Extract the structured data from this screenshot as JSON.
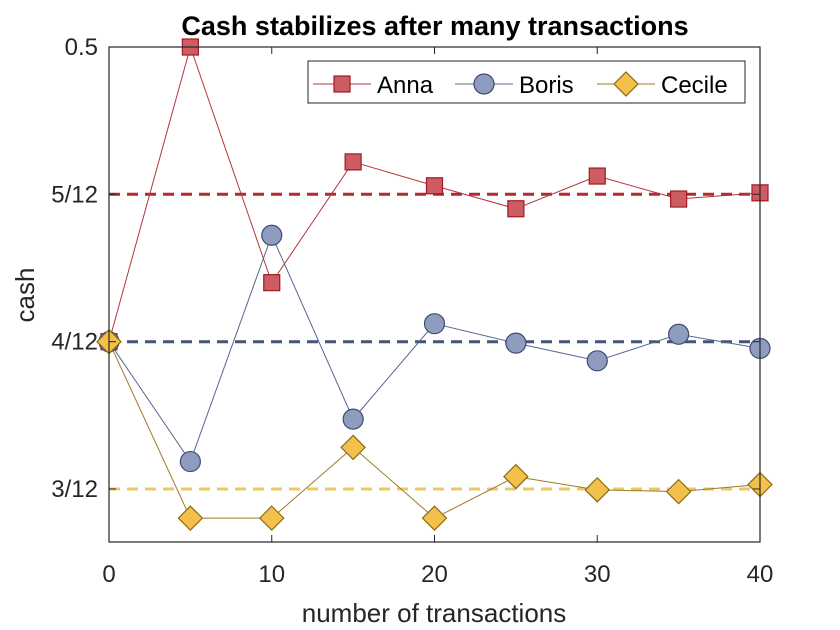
{
  "chart_data": {
    "type": "line",
    "title": "Cash stabilizes after many transactions",
    "xlabel": "number of transactions",
    "ylabel": "cash",
    "xlim": [
      0,
      40
    ],
    "ylim": [
      0.22,
      0.5
    ],
    "x_ticks": [
      0,
      10,
      20,
      30,
      40
    ],
    "y_ticks": [
      {
        "value": 0.25,
        "label": "3/12"
      },
      {
        "value": 0.3333,
        "label": "4/12"
      },
      {
        "value": 0.4167,
        "label": "5/12"
      },
      {
        "value": 0.5,
        "label": "0.5"
      }
    ],
    "grid": false,
    "legend_position": "top-right",
    "x": [
      0,
      5,
      10,
      15,
      20,
      25,
      30,
      35,
      40
    ],
    "series": [
      {
        "name": "Anna",
        "marker": "square",
        "color": "#cd5c63",
        "edge": "#a01a22",
        "line": "#b2363d",
        "values": [
          0.3333,
          0.5,
          0.3667,
          0.435,
          0.4215,
          0.4085,
          0.427,
          0.414,
          0.4175
        ]
      },
      {
        "name": "Boris",
        "marker": "circle",
        "color": "#8e9dbf",
        "edge": "#3e4b6e",
        "line": "#56678f",
        "values": [
          0.3333,
          0.2655,
          0.3935,
          0.2895,
          0.3435,
          0.3325,
          0.3225,
          0.3375,
          0.3295
        ]
      },
      {
        "name": "Cecile",
        "marker": "diamond",
        "color": "#f3c14b",
        "edge": "#8a6a14",
        "line": "#9c7a25",
        "values": [
          0.3333,
          0.2335,
          0.2335,
          0.2735,
          0.2335,
          0.257,
          0.2495,
          0.2485,
          0.2525
        ]
      }
    ],
    "reference_lines": [
      {
        "value": 0.4167,
        "color": "#b22a32"
      },
      {
        "value": 0.3333,
        "color": "#445577"
      },
      {
        "value": 0.25,
        "color": "#ecc960"
      }
    ]
  }
}
